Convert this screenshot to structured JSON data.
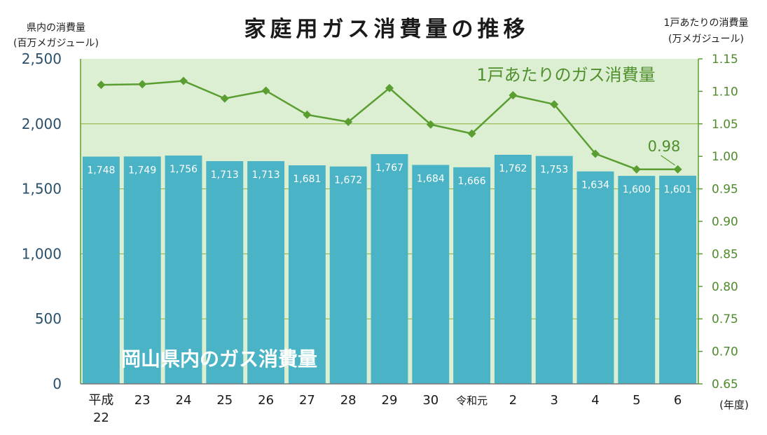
{
  "chart_data": {
    "type": "bar+line",
    "title": "家庭用ガス消費量の推移",
    "left_axis": {
      "label_line1": "県内の消費量",
      "label_line2": "(百万メガジュール)",
      "ylim": [
        0,
        2500
      ],
      "ticks": [
        0,
        500,
        1000,
        1500,
        2000,
        2500
      ],
      "tick_labels": [
        "0",
        "500",
        "1,000",
        "1,500",
        "2,000",
        "2,500"
      ]
    },
    "right_axis": {
      "label_line1": "1戸あたりの消費量",
      "label_line2": "(万メガジュール)",
      "ylim": [
        0.65,
        1.15
      ],
      "ticks": [
        0.65,
        0.7,
        0.75,
        0.8,
        0.85,
        0.9,
        0.95,
        1.0,
        1.05,
        1.1,
        1.15
      ],
      "tick_labels": [
        "0.65",
        "0.70",
        "0.75",
        "0.80",
        "0.85",
        "0.90",
        "0.95",
        "1.00",
        "1.05",
        "1.10",
        "1.15"
      ]
    },
    "x_unit": "(年度)",
    "categories": [
      {
        "line1": "平成",
        "line2": "22"
      },
      {
        "line1": "23",
        "line2": ""
      },
      {
        "line1": "24",
        "line2": ""
      },
      {
        "line1": "25",
        "line2": ""
      },
      {
        "line1": "26",
        "line2": ""
      },
      {
        "line1": "27",
        "line2": ""
      },
      {
        "line1": "28",
        "line2": ""
      },
      {
        "line1": "29",
        "line2": ""
      },
      {
        "line1": "30",
        "line2": ""
      },
      {
        "line1": "令和元",
        "line2": ""
      },
      {
        "line1": "2",
        "line2": ""
      },
      {
        "line1": "3",
        "line2": ""
      },
      {
        "line1": "4",
        "line2": ""
      },
      {
        "line1": "5",
        "line2": ""
      },
      {
        "line1": "6",
        "line2": ""
      }
    ],
    "series": [
      {
        "name": "岡山県内のガス消費量",
        "type": "bar",
        "axis": "left",
        "color": "#4ab3c5",
        "values": [
          1748,
          1749,
          1756,
          1713,
          1713,
          1681,
          1672,
          1767,
          1684,
          1666,
          1762,
          1753,
          1634,
          1600,
          1601
        ],
        "value_labels": [
          "1,748",
          "1,749",
          "1,756",
          "1,713",
          "1,713",
          "1,681",
          "1,672",
          "1,767",
          "1,684",
          "1,666",
          "1,762",
          "1,753",
          "1,634",
          "1,600",
          "1,601"
        ]
      },
      {
        "name": "1戸あたりのガス消費量",
        "type": "line",
        "axis": "right",
        "color": "#5a9e32",
        "values": [
          1.11,
          1.111,
          1.116,
          1.089,
          1.101,
          1.064,
          1.053,
          1.105,
          1.049,
          1.035,
          1.094,
          1.08,
          1.004,
          0.98,
          0.98
        ]
      }
    ],
    "annotation": {
      "text": "0.98",
      "target_index": 14
    },
    "plot_background": "#dcefd2",
    "gridlines": true
  }
}
